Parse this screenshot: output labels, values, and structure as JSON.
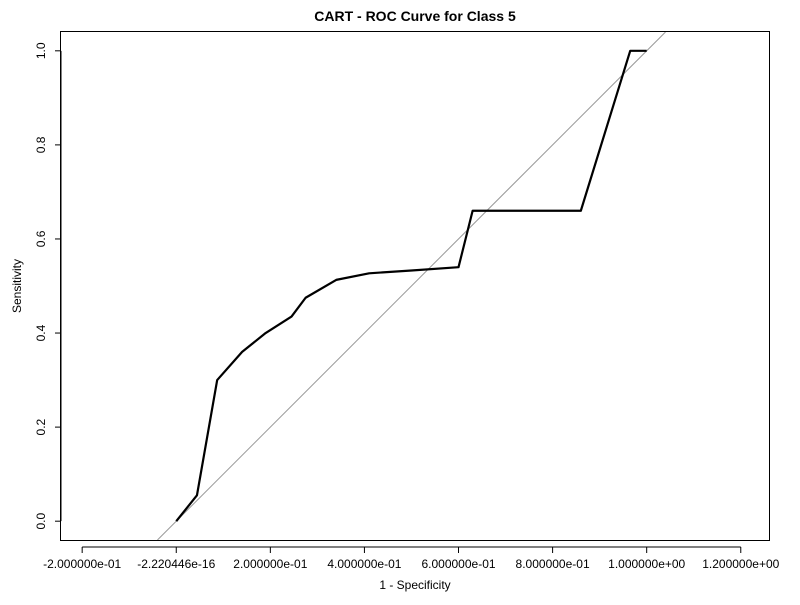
{
  "chart_data": {
    "type": "line",
    "title": "CART - ROC Curve for Class 5",
    "xlabel": "1 - Specificity",
    "ylabel": "Sensitivity",
    "xlim": [
      -0.245,
      1.26
    ],
    "ylim": [
      -0.04,
      1.04
    ],
    "grid": false,
    "legend": "none",
    "x_ticks": {
      "values": [
        -0.2,
        -2.220446e-16,
        0.2,
        0.4,
        0.6,
        0.8,
        1.0,
        1.2
      ],
      "labels": [
        "-2.000000e-01",
        "-2.220446e-16",
        "2.000000e-01",
        "4.000000e-01",
        "6.000000e-01",
        "8.000000e-01",
        "1.000000e+00",
        "1.200000e+00"
      ]
    },
    "y_ticks": {
      "values": [
        0.0,
        0.2,
        0.4,
        0.6,
        0.8,
        1.0
      ],
      "labels": [
        "0.0",
        "0.2",
        "0.4",
        "0.6",
        "0.8",
        "1.0"
      ]
    },
    "series": [
      {
        "color": "#000000",
        "x": [
          0.0,
          0.044,
          0.087,
          0.14,
          0.19,
          0.245,
          0.275,
          0.34,
          0.41,
          0.5,
          0.6,
          0.63,
          0.86,
          0.965,
          1.0
        ],
        "y": [
          0.0,
          0.055,
          0.3,
          0.36,
          0.4,
          0.435,
          0.475,
          0.513,
          0.527,
          0.533,
          0.54,
          0.66,
          0.66,
          1.0,
          1.0
        ]
      }
    ],
    "reference_line": {
      "color": "#999999",
      "x": [
        -0.04,
        1.04
      ],
      "y": [
        -0.04,
        1.04
      ]
    }
  }
}
